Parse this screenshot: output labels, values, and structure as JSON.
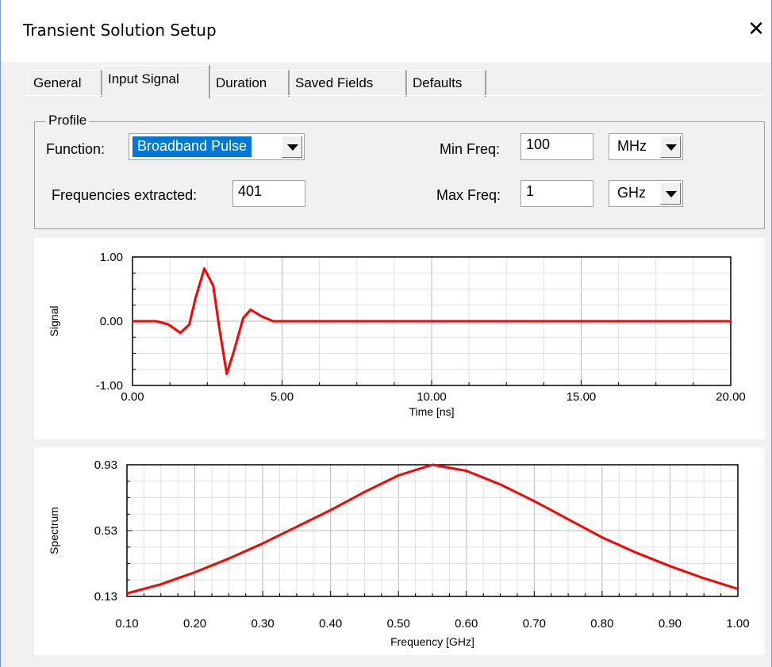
{
  "window": {
    "title": "Transient Solution Setup",
    "close_glyph": "✕"
  },
  "tabs": [
    {
      "label": "General"
    },
    {
      "label": "Input Signal"
    },
    {
      "label": "Duration"
    },
    {
      "label": "Saved Fields"
    },
    {
      "label": "Defaults"
    }
  ],
  "profile": {
    "legend": "Profile",
    "function_label": "Function:",
    "function_value": "Broadband Pulse",
    "freq_extracted_label": "Frequencies extracted:",
    "freq_extracted_value": "401",
    "min_freq_label": "Min Freq:",
    "min_freq_value": "100",
    "min_freq_unit": "MHz",
    "max_freq_label": "Max Freq:",
    "max_freq_value": "1",
    "max_freq_unit": "GHz"
  },
  "chart_data": [
    {
      "type": "line",
      "xlabel": "Time [ns]",
      "ylabel": "Signal",
      "xlim": [
        0,
        20
      ],
      "ylim": [
        -1,
        1
      ],
      "xticks": [
        "0.00",
        "5.00",
        "10.00",
        "15.00",
        "20.00"
      ],
      "yticks": [
        "1.00",
        "0.00",
        "-1.00"
      ],
      "grid": true,
      "color": "#ff0000",
      "series": [
        {
          "x": [
            0,
            0.8,
            1.2,
            1.6,
            1.9,
            2.1,
            2.4,
            2.7,
            2.9,
            3.15,
            3.4,
            3.7,
            3.95,
            4.3,
            4.7,
            5,
            10,
            15,
            20
          ],
          "y": [
            0,
            0,
            -0.05,
            -0.18,
            -0.05,
            0.35,
            0.82,
            0.55,
            -0.1,
            -0.82,
            -0.45,
            0.05,
            0.18,
            0.08,
            0,
            0,
            0,
            0,
            0
          ]
        }
      ]
    },
    {
      "type": "line",
      "xlabel": "Frequency [GHz]",
      "ylabel": "Spectrum",
      "xlim": [
        0.1,
        1.0
      ],
      "ylim": [
        0.13,
        1.0
      ],
      "xticks": [
        "0.10",
        "0.20",
        "0.30",
        "0.40",
        "0.50",
        "0.60",
        "0.70",
        "0.80",
        "0.90",
        "1.00"
      ],
      "yticks": [
        "0.93",
        "0.53",
        "0.13"
      ],
      "grid": true,
      "color": "#ff0000",
      "series": [
        {
          "x": [
            0.1,
            0.15,
            0.2,
            0.25,
            0.3,
            0.35,
            0.4,
            0.45,
            0.5,
            0.55,
            0.6,
            0.65,
            0.7,
            0.75,
            0.8,
            0.85,
            0.9,
            0.95,
            1.0
          ],
          "y": [
            0.15,
            0.21,
            0.29,
            0.38,
            0.48,
            0.59,
            0.7,
            0.82,
            0.93,
            1.0,
            0.96,
            0.87,
            0.76,
            0.64,
            0.52,
            0.42,
            0.33,
            0.25,
            0.18
          ]
        }
      ]
    }
  ]
}
